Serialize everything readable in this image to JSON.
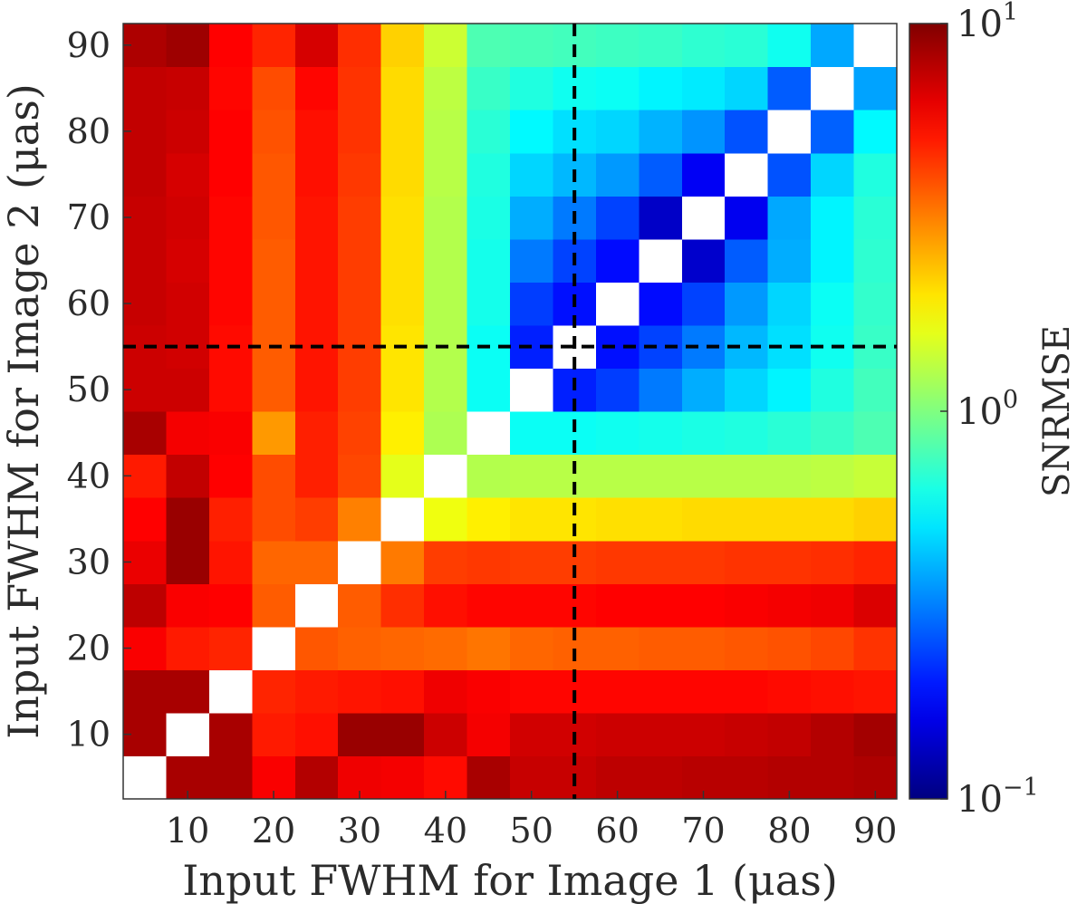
{
  "chart_data": {
    "type": "heatmap",
    "title": "",
    "xlabel": "Input FWHM for Image 1 (μas)",
    "ylabel": "Input FWHM for Image 2 (μas)",
    "x_centers": [
      5,
      10,
      15,
      20,
      25,
      30,
      35,
      40,
      45,
      50,
      55,
      60,
      65,
      70,
      75,
      80,
      85,
      90
    ],
    "y_centers": [
      5,
      10,
      15,
      20,
      25,
      30,
      35,
      40,
      45,
      50,
      55,
      60,
      65,
      70,
      75,
      80,
      85,
      90
    ],
    "xlim": [
      2.5,
      92.5
    ],
    "ylim": [
      2.5,
      92.5
    ],
    "x_ticks": [
      10,
      20,
      30,
      40,
      50,
      60,
      70,
      80,
      90
    ],
    "y_ticks": [
      10,
      20,
      30,
      40,
      50,
      60,
      70,
      80,
      90
    ],
    "colorbar": {
      "label": "SNRMSE",
      "scale": "log",
      "colormap": "jet",
      "range": [
        0.1,
        10
      ],
      "ticks": [
        {
          "base": "10",
          "exp": "1",
          "value": 10
        },
        {
          "base": "10",
          "exp": "0",
          "value": 1
        },
        {
          "base": "10",
          "exp": "−1",
          "value": 0.1
        }
      ]
    },
    "reference_lines": {
      "x": 55,
      "y": 55,
      "style": "dashed",
      "color": "#000000"
    },
    "diagonal_color": "#ffffff",
    "z_note": "z values are log10(SNRMSE); rows ordered from y=5 (bottom) to y=90 (top); null = blank diagonal cell",
    "z": [
      [
        null,
        0.92,
        0.92,
        0.76,
        0.9,
        0.78,
        0.77,
        0.73,
        0.92,
        0.86,
        0.86,
        0.88,
        0.88,
        0.89,
        0.89,
        0.9,
        0.9,
        0.91
      ],
      [
        0.92,
        null,
        0.92,
        0.7,
        0.72,
        0.95,
        0.95,
        0.85,
        0.77,
        0.84,
        0.84,
        0.85,
        0.85,
        0.85,
        0.86,
        0.87,
        0.9,
        0.93
      ],
      [
        0.92,
        0.92,
        null,
        0.68,
        0.7,
        0.71,
        0.72,
        0.78,
        0.76,
        0.74,
        0.74,
        0.74,
        0.74,
        0.74,
        0.74,
        0.73,
        0.72,
        0.71
      ],
      [
        0.76,
        0.7,
        0.68,
        null,
        0.58,
        0.56,
        0.55,
        0.54,
        0.52,
        0.55,
        0.56,
        0.56,
        0.57,
        0.57,
        0.58,
        0.59,
        0.61,
        0.65
      ],
      [
        0.88,
        0.76,
        0.75,
        0.57,
        null,
        0.57,
        0.66,
        0.72,
        0.74,
        0.74,
        0.74,
        0.75,
        0.75,
        0.75,
        0.76,
        0.77,
        0.78,
        0.82
      ],
      [
        0.79,
        0.95,
        0.71,
        0.55,
        0.55,
        null,
        0.51,
        0.63,
        0.64,
        0.63,
        0.63,
        0.64,
        0.64,
        0.64,
        0.65,
        0.65,
        0.66,
        0.68
      ],
      [
        0.75,
        0.95,
        0.69,
        0.6,
        0.63,
        0.5,
        null,
        0.22,
        0.28,
        0.3,
        0.3,
        0.31,
        0.31,
        0.32,
        0.32,
        0.32,
        0.32,
        0.34
      ],
      [
        0.7,
        0.87,
        0.75,
        0.6,
        0.69,
        0.61,
        0.2,
        null,
        0.1,
        0.11,
        0.11,
        0.11,
        0.11,
        0.11,
        0.11,
        0.11,
        0.12,
        0.14
      ],
      [
        0.92,
        0.77,
        0.76,
        0.45,
        0.69,
        0.62,
        0.28,
        0.09,
        null,
        -0.23,
        -0.23,
        -0.22,
        -0.21,
        -0.2,
        -0.19,
        -0.17,
        -0.14,
        -0.1
      ],
      [
        0.85,
        0.85,
        0.73,
        0.57,
        0.71,
        0.63,
        0.3,
        0.1,
        -0.23,
        null,
        -0.69,
        -0.63,
        -0.51,
        -0.41,
        -0.33,
        -0.27,
        -0.19,
        -0.12
      ],
      [
        0.85,
        0.84,
        0.73,
        0.57,
        0.71,
        0.63,
        0.3,
        0.1,
        -0.23,
        -0.69,
        null,
        -0.72,
        -0.62,
        -0.51,
        -0.39,
        -0.31,
        -0.22,
        -0.14
      ],
      [
        0.86,
        0.84,
        0.74,
        0.57,
        0.71,
        0.63,
        0.31,
        0.1,
        -0.21,
        -0.63,
        -0.72,
        null,
        -0.73,
        -0.62,
        -0.45,
        -0.33,
        -0.23,
        -0.15
      ],
      [
        0.86,
        0.83,
        0.74,
        0.57,
        0.71,
        0.63,
        0.31,
        0.1,
        -0.21,
        -0.51,
        -0.62,
        -0.73,
        null,
        -0.85,
        -0.57,
        -0.41,
        -0.27,
        -0.16
      ],
      [
        0.86,
        0.84,
        0.74,
        0.58,
        0.71,
        0.63,
        0.31,
        0.1,
        -0.2,
        -0.41,
        -0.51,
        -0.62,
        -0.86,
        null,
        -0.78,
        -0.42,
        -0.27,
        -0.17
      ],
      [
        0.87,
        0.83,
        0.75,
        0.58,
        0.72,
        0.64,
        0.32,
        0.11,
        -0.19,
        -0.33,
        -0.39,
        -0.45,
        -0.57,
        -0.77,
        null,
        -0.59,
        -0.33,
        -0.19
      ],
      [
        0.87,
        0.85,
        0.75,
        0.59,
        0.72,
        0.65,
        0.32,
        0.11,
        -0.17,
        -0.26,
        -0.31,
        -0.33,
        -0.4,
        -0.46,
        -0.59,
        null,
        -0.56,
        -0.26
      ],
      [
        0.87,
        0.86,
        0.74,
        0.6,
        0.74,
        0.65,
        0.32,
        0.12,
        -0.14,
        -0.19,
        -0.22,
        -0.23,
        -0.27,
        -0.29,
        -0.33,
        -0.57,
        null,
        -0.43
      ],
      [
        0.91,
        0.94,
        0.75,
        0.68,
        0.83,
        0.66,
        0.34,
        0.15,
        -0.1,
        -0.11,
        -0.12,
        -0.13,
        -0.14,
        -0.16,
        -0.17,
        -0.22,
        -0.42,
        null
      ]
    ]
  }
}
